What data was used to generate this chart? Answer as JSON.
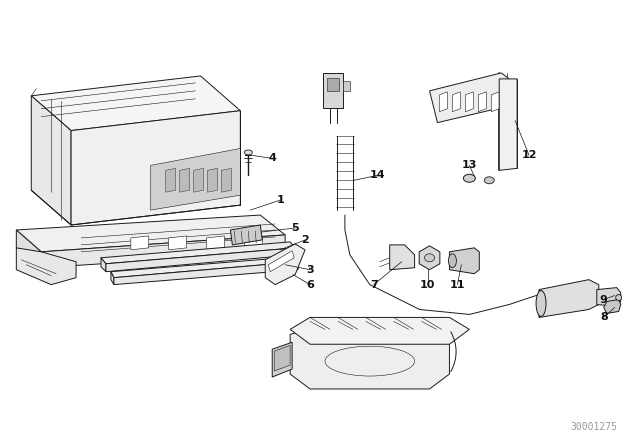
{
  "bg_color": "#ffffff",
  "fig_width": 6.4,
  "fig_height": 4.48,
  "dpi": 100,
  "watermark": "30001275",
  "watermark_color": "#999999",
  "watermark_fontsize": 7,
  "line_color": "#1a1a1a",
  "line_width": 0.7,
  "thin_lw": 0.4,
  "label_fontsize": 8,
  "label_color": "#111111",
  "leader_lw": 0.5,
  "leader_color": "#111111"
}
